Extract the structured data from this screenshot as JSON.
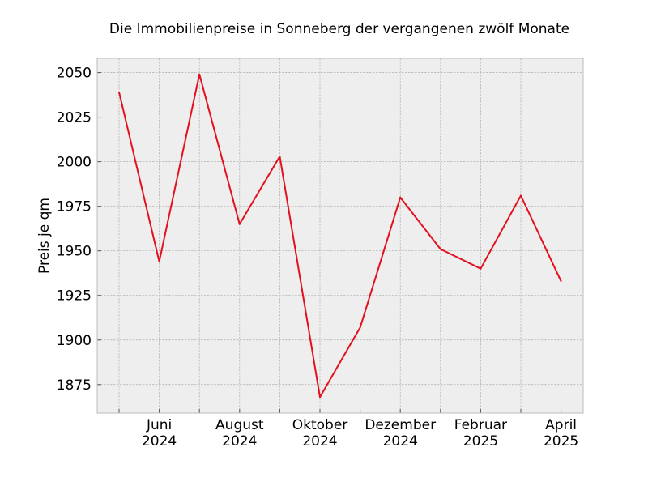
{
  "chart_data": {
    "type": "line",
    "title": "Die Immobilienpreise in Sonneberg der vergangenen zwölf Monate",
    "xlabel": "",
    "ylabel": "Preis je qm",
    "x": [
      "2024-05",
      "2024-06",
      "2024-07",
      "2024-08",
      "2024-09",
      "2024-10",
      "2024-11",
      "2024-12",
      "2025-01",
      "2025-02",
      "2025-03",
      "2025-04"
    ],
    "series": [
      {
        "values": [
          2039,
          1944,
          2049,
          1965,
          2003,
          1868,
          1907,
          1980,
          1951,
          1940,
          1981,
          1933
        ]
      }
    ],
    "ylim": [
      1859,
      2058
    ],
    "yticks": [
      1875,
      1900,
      1925,
      1950,
      1975,
      2000,
      2025,
      2050
    ],
    "xtick_labels": [
      {
        "x": "2024-06",
        "line1": "Juni",
        "line2": "2024"
      },
      {
        "x": "2024-08",
        "line1": "August",
        "line2": "2024"
      },
      {
        "x": "2024-10",
        "line1": "Oktober",
        "line2": "2024"
      },
      {
        "x": "2024-12",
        "line1": "Dezember",
        "line2": "2024"
      },
      {
        "x": "2025-02",
        "line1": "Februar",
        "line2": "2025"
      },
      {
        "x": "2025-04",
        "line1": "April",
        "line2": "2025"
      }
    ],
    "grid": true,
    "colors": {
      "line": "#e3101d",
      "plot_bg": "#eeeeee",
      "grid": "#b0b0b0",
      "spine": "#bcbcbc"
    }
  }
}
